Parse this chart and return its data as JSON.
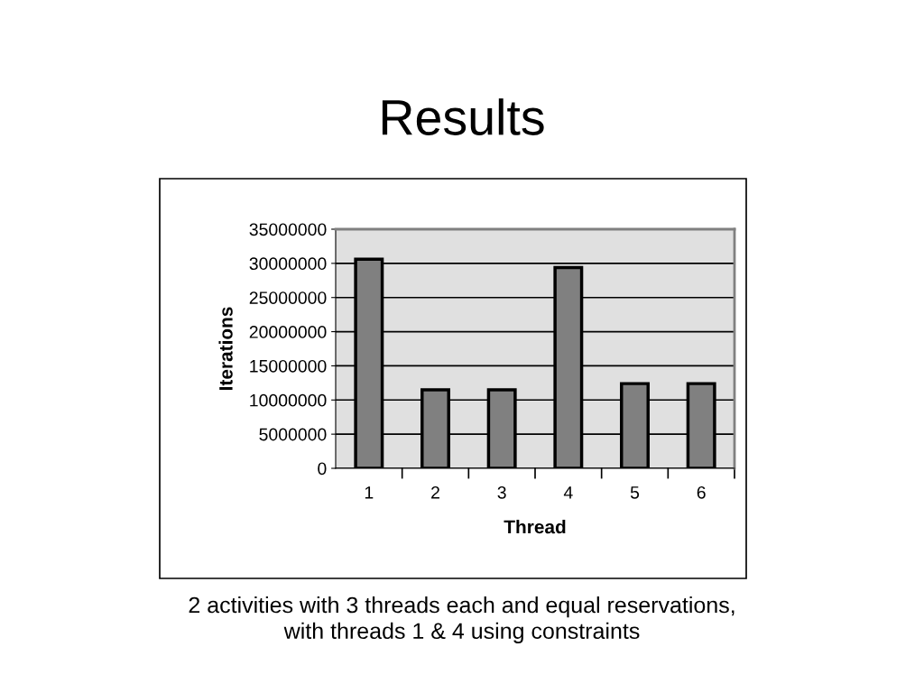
{
  "chart_data": {
    "type": "bar",
    "title": "Results",
    "xlabel": "Thread",
    "ylabel": "Iterations",
    "categories": [
      "1",
      "2",
      "3",
      "4",
      "5",
      "6"
    ],
    "values": [
      30600000,
      11500000,
      11500000,
      29400000,
      12400000,
      12400000
    ],
    "color": "#808080",
    "ylim": [
      0,
      35000000
    ],
    "yticks": [
      0,
      5000000,
      10000000,
      15000000,
      20000000,
      25000000,
      30000000,
      35000000
    ],
    "grid": "y",
    "legend": false,
    "annotations": [
      "2 activities with 3 threads each and equal reservations,\nwith threads 1 & 4 using constraints"
    ]
  }
}
